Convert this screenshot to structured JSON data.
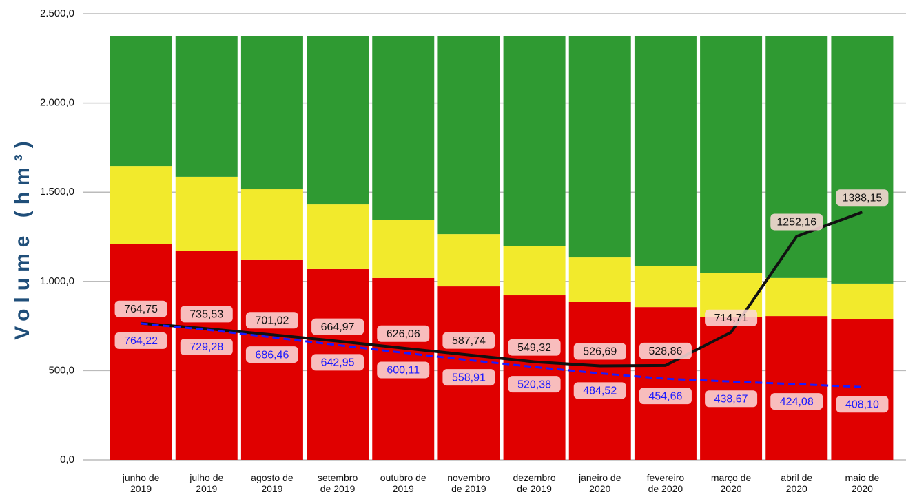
{
  "chart_data": {
    "type": "stacked-bar-line",
    "y_label": "Volume (hm³)",
    "categories": [
      "junho de\n2019",
      "julho de\n2019",
      "agosto de\n2019",
      "setembro\nde 2019",
      "outubro de\n2019",
      "novembro\nde 2019",
      "dezembro\nde 2019",
      "janeiro de\n2020",
      "fevereiro\nde 2020",
      "março de\n2020",
      "abril de\n2020",
      "maio de\n2020"
    ],
    "ylim": [
      0,
      2500
    ],
    "yticks": [
      {
        "value": 0,
        "label": "0,0"
      },
      {
        "value": 500,
        "label": "500,0"
      },
      {
        "value": 1000,
        "label": "1.000,0"
      },
      {
        "value": 1500,
        "label": "1.500,0"
      },
      {
        "value": 2000,
        "label": "2.000,0"
      },
      {
        "value": 2500,
        "label": "2.500,0"
      }
    ],
    "grid": true,
    "bars": [
      {
        "color": "#e00000",
        "values": [
          1208,
          1169,
          1123,
          1069,
          1019,
          972,
          922,
          887,
          856,
          802,
          806,
          787
        ]
      },
      {
        "color": "#f2ea2c",
        "values": [
          439,
          417,
          393,
          362,
          324,
          293,
          274,
          247,
          232,
          247,
          213,
          201
        ]
      },
      {
        "color": "#2f9a32",
        "values": [
          726,
          787,
          857,
          942,
          1030,
          1108,
          1177,
          1239,
          1285,
          1324,
          1354,
          1385
        ]
      }
    ],
    "lines": [
      {
        "color": "#111111",
        "style": "solid",
        "label_side": "above",
        "values": [
          764.75,
          735.53,
          701.02,
          664.97,
          626.06,
          587.74,
          549.32,
          526.69,
          528.86,
          714.71,
          1252.16,
          1388.15
        ],
        "value_labels": [
          "764,75",
          "735,53",
          "701,02",
          "664,97",
          "626,06",
          "587,74",
          "549,32",
          "526,69",
          "528,86",
          "714,71",
          "1252,16",
          "1388,15"
        ]
      },
      {
        "color": "#1a1aff",
        "style": "dashed",
        "label_side": "below",
        "values": [
          764.22,
          729.28,
          686.46,
          642.95,
          600.11,
          558.91,
          520.38,
          484.52,
          454.66,
          438.67,
          424.08,
          408.1
        ],
        "value_labels": [
          "764,22",
          "729,28",
          "686,46",
          "642,95",
          "600,11",
          "558,91",
          "520,38",
          "484,52",
          "454,66",
          "438,67",
          "424,08",
          "408,10"
        ]
      }
    ]
  }
}
